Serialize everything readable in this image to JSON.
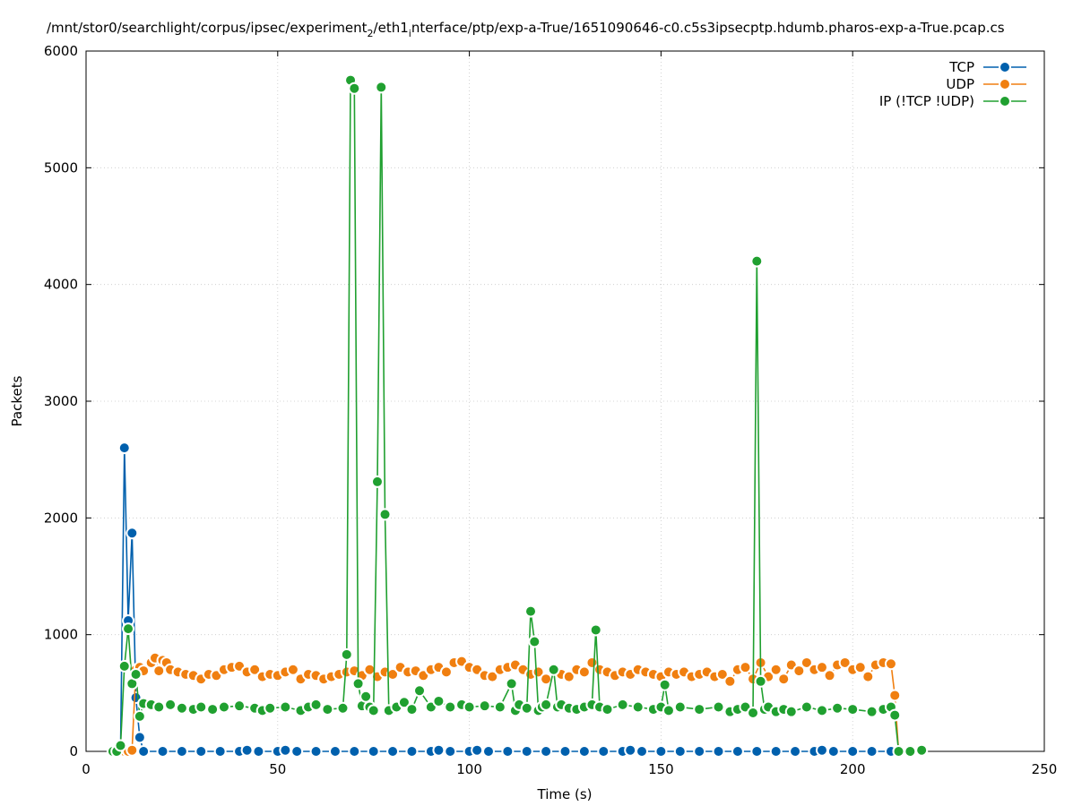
{
  "chart_data": {
    "type": "line",
    "title": "/mnt/stor0/searchlight/corpus/ipsec/experiment",
    "title_sub1": "2",
    "title_mid": "/eth1",
    "title_sub2": "i",
    "title_end": "nterface/ptp/exp-a-True/1651090646-c0.c5s3ipsecptp.hdumb.pharos-exp-a-True.pcap.cs",
    "xlabel": "Time (s)",
    "ylabel": "Packets",
    "xlim": [
      0,
      250
    ],
    "ylim": [
      0,
      6000
    ],
    "x_ticks": [
      0,
      50,
      100,
      150,
      200,
      250
    ],
    "y_ticks": [
      0,
      1000,
      2000,
      3000,
      4000,
      5000,
      6000
    ],
    "x_tick_labels": [
      "0",
      "50",
      "100",
      "150",
      "200",
      "250"
    ],
    "y_tick_labels": [
      "0",
      "1000",
      "2000",
      "3000",
      "4000",
      "5000",
      "6000"
    ],
    "grid": true,
    "legend_position": "top-right",
    "series": [
      {
        "name": "TCP",
        "color": "#0060ad",
        "x": [
          7,
          8,
          9,
          10,
          11,
          12,
          13,
          14,
          15,
          20,
          25,
          30,
          35,
          40,
          42,
          45,
          50,
          52,
          55,
          60,
          65,
          70,
          75,
          80,
          85,
          90,
          92,
          95,
          100,
          102,
          105,
          110,
          115,
          120,
          125,
          130,
          135,
          140,
          142,
          145,
          150,
          155,
          160,
          165,
          170,
          175,
          180,
          185,
          190,
          192,
          195,
          200,
          205,
          210,
          215,
          218
        ],
        "values": [
          0,
          0,
          30,
          2600,
          1120,
          1870,
          460,
          120,
          0,
          0,
          0,
          0,
          0,
          0,
          10,
          0,
          0,
          10,
          0,
          0,
          0,
          0,
          0,
          0,
          0,
          0,
          10,
          0,
          0,
          10,
          0,
          0,
          0,
          0,
          0,
          0,
          0,
          0,
          10,
          0,
          0,
          0,
          0,
          0,
          0,
          0,
          0,
          0,
          0,
          10,
          0,
          0,
          0,
          0,
          0,
          0
        ]
      },
      {
        "name": "UDP",
        "color": "#f07f10",
        "x": [
          9,
          10,
          11,
          12,
          13,
          14,
          15,
          17,
          18,
          19,
          20,
          21,
          22,
          24,
          26,
          28,
          30,
          32,
          34,
          36,
          38,
          40,
          42,
          44,
          46,
          48,
          50,
          52,
          54,
          56,
          58,
          60,
          62,
          64,
          66,
          68,
          70,
          72,
          74,
          76,
          78,
          80,
          82,
          84,
          86,
          88,
          90,
          92,
          94,
          96,
          98,
          100,
          102,
          104,
          106,
          108,
          110,
          112,
          114,
          116,
          118,
          120,
          122,
          124,
          126,
          128,
          130,
          132,
          134,
          136,
          138,
          140,
          142,
          144,
          146,
          148,
          150,
          152,
          154,
          156,
          158,
          160,
          162,
          164,
          166,
          168,
          170,
          172,
          174,
          176,
          178,
          180,
          182,
          184,
          186,
          188,
          190,
          192,
          194,
          196,
          198,
          200,
          202,
          204,
          206,
          208,
          210,
          211,
          212
        ],
        "values": [
          0,
          0,
          0,
          10,
          700,
          720,
          690,
          760,
          800,
          690,
          780,
          760,
          700,
          680,
          660,
          650,
          620,
          660,
          650,
          700,
          720,
          730,
          680,
          700,
          640,
          660,
          650,
          680,
          700,
          620,
          660,
          650,
          620,
          640,
          660,
          680,
          690,
          650,
          700,
          640,
          680,
          660,
          720,
          680,
          690,
          650,
          700,
          720,
          680,
          760,
          770,
          720,
          700,
          650,
          640,
          700,
          720,
          740,
          700,
          660,
          680,
          620,
          700,
          660,
          640,
          700,
          680,
          760,
          700,
          680,
          650,
          680,
          660,
          700,
          680,
          660,
          640,
          680,
          660,
          680,
          640,
          660,
          680,
          640,
          660,
          600,
          700,
          720,
          620,
          760,
          640,
          700,
          620,
          740,
          690,
          760,
          700,
          720,
          650,
          740,
          760,
          700,
          720,
          640,
          740,
          760,
          750,
          480,
          0
        ]
      },
      {
        "name": "IP (!TCP  !UDP)",
        "color": "#20a030",
        "x": [
          7,
          8,
          9,
          10,
          11,
          12,
          13,
          14,
          15,
          17,
          19,
          22,
          25,
          28,
          30,
          33,
          36,
          40,
          44,
          46,
          48,
          52,
          56,
          58,
          60,
          63,
          67,
          68,
          69,
          70,
          71,
          72,
          73,
          74,
          75,
          76,
          77,
          78,
          79,
          81,
          83,
          85,
          87,
          90,
          92,
          95,
          98,
          100,
          104,
          108,
          111,
          112,
          113,
          115,
          116,
          117,
          118,
          119,
          120,
          122,
          123,
          124,
          126,
          128,
          130,
          132,
          133,
          134,
          136,
          140,
          144,
          148,
          150,
          151,
          152,
          155,
          160,
          165,
          168,
          170,
          172,
          174,
          175,
          176,
          177,
          178,
          180,
          182,
          184,
          188,
          192,
          196,
          200,
          205,
          208,
          210,
          211,
          212,
          215,
          218
        ],
        "values": [
          0,
          0,
          50,
          730,
          1050,
          580,
          660,
          300,
          410,
          400,
          380,
          400,
          370,
          360,
          380,
          360,
          380,
          390,
          370,
          350,
          370,
          380,
          350,
          380,
          400,
          360,
          370,
          830,
          5750,
          5680,
          580,
          390,
          470,
          380,
          350,
          2310,
          5690,
          2030,
          350,
          380,
          420,
          360,
          520,
          380,
          430,
          380,
          400,
          380,
          390,
          380,
          580,
          350,
          400,
          370,
          1200,
          940,
          350,
          380,
          400,
          700,
          380,
          400,
          370,
          360,
          380,
          400,
          1040,
          380,
          360,
          400,
          380,
          360,
          380,
          570,
          350,
          380,
          360,
          380,
          340,
          360,
          380,
          330,
          4200,
          600,
          360,
          380,
          340,
          360,
          340,
          380,
          350,
          370,
          360,
          340,
          360,
          380,
          310,
          0,
          0,
          10
        ]
      }
    ]
  }
}
